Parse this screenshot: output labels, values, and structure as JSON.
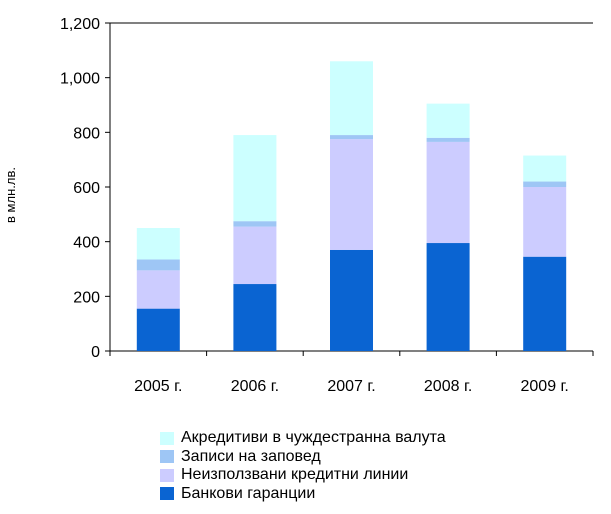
{
  "chart_data": {
    "type": "bar",
    "stacked": true,
    "categories": [
      "2005 г.",
      "2006 г.",
      "2007 г.",
      "2008 г.",
      "2009 г."
    ],
    "ylabel": "в млн.лв.",
    "ylim": [
      0,
      1200
    ],
    "yticks": [
      0,
      200,
      400,
      600,
      800,
      1000,
      1200
    ],
    "ytick_labels": [
      "0",
      "200",
      "400",
      "600",
      "800",
      "1,000",
      "1,200"
    ],
    "grid": false,
    "legend_position": "bottom",
    "series": [
      {
        "name": "Банкови гаранции",
        "color": "#0a64d2",
        "values": [
          155,
          245,
          370,
          395,
          345
        ]
      },
      {
        "name": "Неизползвани кредитни линии",
        "color": "#ccccff",
        "values": [
          140,
          210,
          405,
          370,
          255
        ]
      },
      {
        "name": "Записи на заповед",
        "color": "#9ec6f5",
        "values": [
          40,
          20,
          15,
          15,
          20
        ]
      },
      {
        "name": "Акредитиви в чуждестранна валута",
        "color": "#ccffff",
        "values": [
          115,
          315,
          270,
          125,
          95
        ]
      }
    ]
  }
}
